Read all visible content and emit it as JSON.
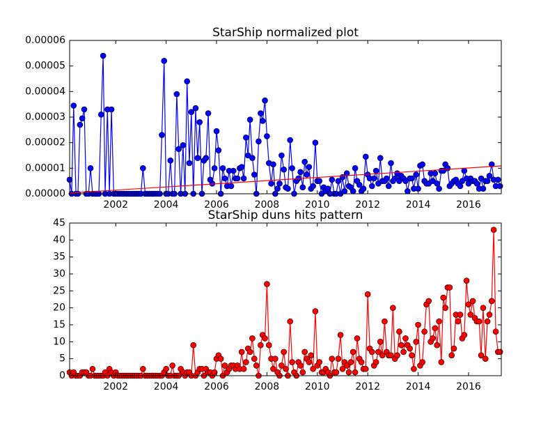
{
  "chart_data": [
    {
      "type": "line",
      "title": "StarShip normalized plot",
      "x": [
        2000.17,
        2000.25,
        2000.33,
        2000.42,
        2000.5,
        2000.58,
        2000.67,
        2000.75,
        2000.83,
        2000.92,
        2001,
        2001.08,
        2001.17,
        2001.25,
        2001.33,
        2001.42,
        2001.5,
        2001.58,
        2001.67,
        2001.75,
        2001.83,
        2001.92,
        2002,
        2002.08,
        2002.17,
        2002.25,
        2002.33,
        2002.42,
        2002.5,
        2002.58,
        2002.67,
        2002.75,
        2002.83,
        2002.92,
        2003,
        2003.08,
        2003.17,
        2003.25,
        2003.33,
        2003.42,
        2003.5,
        2003.58,
        2003.67,
        2003.75,
        2003.83,
        2003.92,
        2004,
        2004.08,
        2004.17,
        2004.25,
        2004.33,
        2004.42,
        2004.5,
        2004.58,
        2004.67,
        2004.75,
        2004.83,
        2004.92,
        2005,
        2005.08,
        2005.17,
        2005.25,
        2005.33,
        2005.42,
        2005.5,
        2005.58,
        2005.67,
        2005.75,
        2005.83,
        2005.92,
        2006,
        2006.08,
        2006.17,
        2006.25,
        2006.33,
        2006.42,
        2006.5,
        2006.58,
        2006.67,
        2006.75,
        2006.83,
        2006.92,
        2007,
        2007.08,
        2007.17,
        2007.25,
        2007.33,
        2007.42,
        2007.5,
        2007.58,
        2007.67,
        2007.75,
        2007.83,
        2007.92,
        2008,
        2008.08,
        2008.17,
        2008.25,
        2008.33,
        2008.42,
        2008.5,
        2008.58,
        2008.67,
        2008.75,
        2008.83,
        2008.92,
        2009,
        2009.08,
        2009.17,
        2009.25,
        2009.33,
        2009.42,
        2009.5,
        2009.58,
        2009.67,
        2009.75,
        2009.83,
        2009.92,
        2010,
        2010.08,
        2010.17,
        2010.25,
        2010.33,
        2010.42,
        2010.5,
        2010.58,
        2010.67,
        2010.75,
        2010.83,
        2010.92,
        2011,
        2011.08,
        2011.17,
        2011.25,
        2011.33,
        2011.42,
        2011.5,
        2011.58,
        2011.67,
        2011.75,
        2011.83,
        2011.92,
        2012,
        2012.08,
        2012.17,
        2012.25,
        2012.33,
        2012.42,
        2012.5,
        2012.58,
        2012.67,
        2012.75,
        2012.83,
        2012.92,
        2013,
        2013.08,
        2013.17,
        2013.25,
        2013.33,
        2013.42,
        2013.5,
        2013.58,
        2013.67,
        2013.75,
        2013.83,
        2013.92,
        2014,
        2014.08,
        2014.17,
        2014.25,
        2014.33,
        2014.42,
        2014.5,
        2014.58,
        2014.67,
        2014.75,
        2014.83,
        2014.92,
        2015,
        2015.08,
        2015.17,
        2015.25,
        2015.33,
        2015.42,
        2015.5,
        2015.58,
        2015.67,
        2015.75,
        2015.83,
        2015.92,
        2016,
        2016.08,
        2016.17,
        2016.25,
        2016.33,
        2016.42,
        2016.5,
        2016.58,
        2016.67,
        2016.75,
        2016.83,
        2016.92,
        2017,
        2017.08,
        2017.17,
        2017.25
      ],
      "series": [
        {
          "color": "#0000ff",
          "values": [
            5.5e-06,
            0,
            3.45e-05,
            0,
            0,
            2.7e-05,
            2.95e-05,
            3.3e-05,
            0,
            0,
            1e-05,
            0,
            0,
            0,
            0,
            3.1e-05,
            5.4e-05,
            0,
            3.3e-05,
            0,
            3.3e-05,
            0,
            0,
            0,
            0,
            0,
            0,
            0,
            0,
            0,
            0,
            0,
            0,
            0,
            0,
            1e-05,
            0,
            0,
            0,
            0,
            0,
            0,
            0,
            0,
            2.3e-05,
            5.2e-05,
            0,
            0,
            1.3e-05,
            0,
            0,
            3.9e-05,
            1.75e-05,
            0,
            1.9e-05,
            0,
            4.4e-05,
            1.2e-05,
            3.2e-05,
            0,
            3.35e-05,
            1.4e-05,
            2.8e-05,
            0,
            1.3e-05,
            1.4e-05,
            3.15e-05,
            5.5e-06,
            4e-06,
            1e-05,
            2.45e-05,
            1.7e-05,
            0,
            1e-05,
            6e-06,
            3e-06,
            9e-06,
            3e-06,
            9e-06,
            6e-06,
            6e-06,
            1e-05,
            1.05e-05,
            6e-06,
            2.2e-05,
            1.5e-05,
            2.9e-05,
            1.4e-05,
            7.5e-06,
            0,
            2.05e-05,
            3.15e-05,
            2.85e-05,
            3.65e-05,
            2.25e-05,
            1.2e-05,
            4e-06,
            1.15e-05,
            0,
            2e-06,
            4e-06,
            1.5e-05,
            9.5e-06,
            2.5e-06,
            2e-06,
            2.1e-05,
            1e-05,
            0,
            5e-06,
            6e-06,
            8.5e-06,
            2.5e-06,
            1.25e-05,
            7.5e-06,
            1.05e-05,
            2e-06,
            3e-06,
            2e-05,
            5e-06,
            5e-06,
            0,
            2.5e-06,
            1e-06,
            2e-06,
            0,
            5.5e-06,
            0,
            0,
            5e-06,
            0,
            6.5e-06,
            1e-06,
            8e-06,
            3e-06,
            2.5e-06,
            1e-06,
            1e-05,
            5e-06,
            3.5e-06,
            1e-06,
            2e-06,
            1.45e-05,
            7.5e-06,
            6e-06,
            3e-06,
            6e-06,
            9e-06,
            4e-06,
            1.4e-05,
            5e-06,
            5e-06,
            6e-06,
            3e-06,
            1.2e-05,
            5e-06,
            6e-06,
            8e-06,
            5e-06,
            7e-06,
            6e-06,
            5e-06,
            1e-06,
            6e-06,
            6e-06,
            2e-06,
            7.5e-06,
            2e-06,
            1.1e-05,
            1.15e-05,
            5e-06,
            4e-06,
            4e-06,
            8e-06,
            5e-06,
            8e-06,
            4e-06,
            2e-06,
            9e-06,
            9e-06,
            1.15e-05,
            1e-05,
            3e-06,
            4e-06,
            5e-06,
            5.5e-06,
            4e-06,
            3e-06,
            5e-06,
            9e-06,
            6e-06,
            4e-06,
            6e-06,
            5e-06,
            5e-06,
            4e-06,
            2e-06,
            6e-06,
            2e-06,
            5e-06,
            5e-06,
            7e-06,
            1.15e-05,
            5.5e-06,
            3e-06,
            5.5e-06,
            3e-06
          ]
        },
        {
          "color": "#ff0000",
          "marker": false,
          "x": [
            2000.17,
            2017.3
          ],
          "values": [
            3e-07,
            1.09e-05
          ]
        }
      ],
      "xlim": [
        2000.17,
        2017.3
      ],
      "xticks": [
        2002,
        2004,
        2006,
        2008,
        2010,
        2012,
        2014,
        2016
      ],
      "ylim": [
        0,
        6e-05
      ],
      "yticks": [
        {
          "value": 0,
          "label": "0.00000"
        },
        {
          "value": 1e-05,
          "label": "0.00001"
        },
        {
          "value": 2e-05,
          "label": "0.00002"
        },
        {
          "value": 3e-05,
          "label": "0.00003"
        },
        {
          "value": 4e-05,
          "label": "0.00004"
        },
        {
          "value": 5e-05,
          "label": "0.00005"
        },
        {
          "value": 6e-05,
          "label": "0.00006"
        }
      ]
    },
    {
      "type": "line",
      "title": "StarShip duns hits pattern",
      "x": [
        2000.17,
        2000.25,
        2000.33,
        2000.42,
        2000.5,
        2000.58,
        2000.67,
        2000.75,
        2000.83,
        2000.92,
        2001,
        2001.08,
        2001.17,
        2001.25,
        2001.33,
        2001.42,
        2001.5,
        2001.58,
        2001.67,
        2001.75,
        2001.83,
        2001.92,
        2002,
        2002.08,
        2002.17,
        2002.25,
        2002.33,
        2002.42,
        2002.5,
        2002.58,
        2002.67,
        2002.75,
        2002.83,
        2002.92,
        2003,
        2003.08,
        2003.17,
        2003.25,
        2003.33,
        2003.42,
        2003.5,
        2003.58,
        2003.67,
        2003.75,
        2003.83,
        2003.92,
        2004,
        2004.08,
        2004.17,
        2004.25,
        2004.33,
        2004.42,
        2004.5,
        2004.58,
        2004.67,
        2004.75,
        2004.83,
        2004.92,
        2005,
        2005.08,
        2005.17,
        2005.25,
        2005.33,
        2005.42,
        2005.5,
        2005.58,
        2005.67,
        2005.75,
        2005.83,
        2005.92,
        2006,
        2006.08,
        2006.17,
        2006.25,
        2006.33,
        2006.42,
        2006.5,
        2006.58,
        2006.67,
        2006.75,
        2006.83,
        2006.92,
        2007,
        2007.08,
        2007.17,
        2007.25,
        2007.33,
        2007.42,
        2007.5,
        2007.58,
        2007.67,
        2007.75,
        2007.83,
        2007.92,
        2008,
        2008.08,
        2008.17,
        2008.25,
        2008.33,
        2008.42,
        2008.5,
        2008.58,
        2008.67,
        2008.75,
        2008.83,
        2008.92,
        2009,
        2009.08,
        2009.17,
        2009.25,
        2009.33,
        2009.42,
        2009.5,
        2009.58,
        2009.67,
        2009.75,
        2009.83,
        2009.92,
        2010,
        2010.08,
        2010.17,
        2010.25,
        2010.33,
        2010.42,
        2010.5,
        2010.58,
        2010.67,
        2010.75,
        2010.83,
        2010.92,
        2011,
        2011.08,
        2011.17,
        2011.25,
        2011.33,
        2011.42,
        2011.5,
        2011.58,
        2011.67,
        2011.75,
        2011.83,
        2011.92,
        2012,
        2012.08,
        2012.17,
        2012.25,
        2012.33,
        2012.42,
        2012.5,
        2012.58,
        2012.67,
        2012.75,
        2012.83,
        2012.92,
        2013,
        2013.08,
        2013.17,
        2013.25,
        2013.33,
        2013.42,
        2013.5,
        2013.58,
        2013.67,
        2013.75,
        2013.83,
        2013.92,
        2014,
        2014.08,
        2014.17,
        2014.25,
        2014.33,
        2014.42,
        2014.5,
        2014.58,
        2014.67,
        2014.75,
        2014.83,
        2014.92,
        2015,
        2015.08,
        2015.17,
        2015.25,
        2015.33,
        2015.42,
        2015.5,
        2015.58,
        2015.67,
        2015.75,
        2015.83,
        2015.92,
        2016,
        2016.08,
        2016.17,
        2016.25,
        2016.33,
        2016.42,
        2016.5,
        2016.58,
        2016.67,
        2016.75,
        2016.83,
        2016.92,
        2017,
        2017.08,
        2017.17,
        2017.25
      ],
      "series": [
        {
          "color": "#ff0000",
          "values": [
            1,
            0,
            1,
            0,
            0,
            0,
            1,
            1,
            1,
            0,
            0,
            2,
            0,
            0,
            0,
            0,
            0,
            1,
            0,
            2,
            1,
            0,
            1,
            0,
            0,
            0,
            0,
            0,
            0,
            0,
            0,
            0,
            0,
            0,
            0,
            2,
            0,
            0,
            0,
            0,
            0,
            0,
            0,
            0,
            0,
            1,
            2,
            0,
            0,
            3,
            0,
            0,
            0,
            2,
            1,
            0,
            1,
            1,
            0,
            9,
            0,
            1,
            2,
            2,
            0,
            2,
            1,
            1,
            0,
            1,
            5,
            6,
            5,
            0,
            3,
            1,
            2,
            3,
            3,
            2,
            3,
            2,
            7,
            2,
            4,
            8,
            7,
            11,
            5,
            3,
            0,
            9,
            12,
            11,
            27,
            9,
            5,
            2,
            5,
            1,
            0,
            3,
            7,
            2,
            0,
            16,
            4,
            1,
            0,
            4,
            3,
            1,
            7,
            5,
            4,
            6,
            2,
            19,
            3,
            4,
            1,
            1,
            2,
            1,
            0,
            5,
            1,
            1,
            5,
            12,
            2,
            4,
            3,
            1,
            4,
            7,
            1,
            11,
            5,
            4,
            2,
            2,
            24,
            8,
            7,
            3,
            4,
            7,
            10,
            6,
            16,
            7,
            6,
            6,
            20,
            5,
            6,
            13,
            9,
            7,
            11,
            9,
            8,
            6,
            2,
            10,
            15,
            3,
            4,
            13,
            21,
            22,
            10,
            11,
            14,
            9,
            16,
            4,
            23,
            20,
            26,
            26,
            6,
            8,
            18,
            16,
            18,
            11,
            12,
            28,
            21,
            18,
            22,
            17,
            16,
            16,
            6,
            20,
            5,
            16,
            18,
            22,
            43,
            13,
            7,
            7
          ]
        }
      ],
      "xlim": [
        2000.17,
        2017.3
      ],
      "xticks": [
        2002,
        2004,
        2006,
        2008,
        2010,
        2012,
        2014,
        2016
      ],
      "ylim": [
        0,
        45
      ],
      "yticks": [
        0,
        5,
        10,
        15,
        20,
        25,
        30,
        35,
        40,
        45
      ]
    }
  ]
}
